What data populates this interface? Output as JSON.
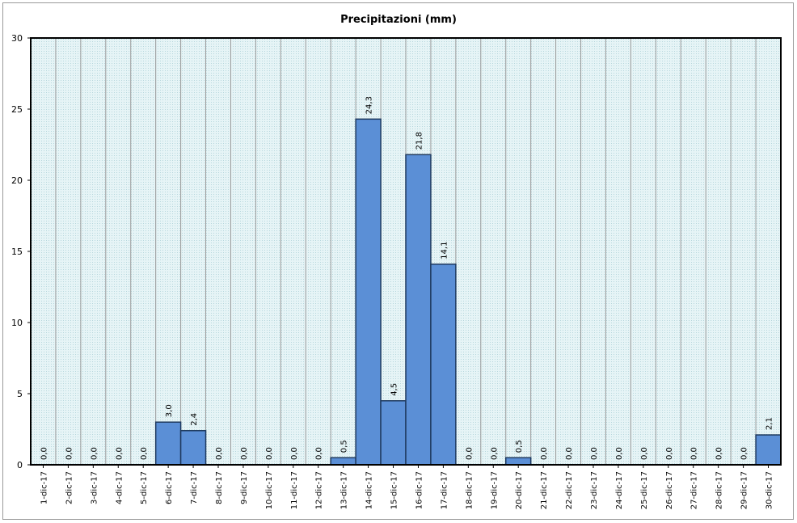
{
  "chart_data": {
    "type": "bar",
    "title": "Precipitazioni (mm)",
    "xlabel": "",
    "ylabel": "",
    "ylim": [
      0,
      30
    ],
    "yticks": [
      "0",
      "5",
      "10",
      "15",
      "20",
      "25",
      "30"
    ],
    "grid": true,
    "colors": {
      "bar_fill": "#5b8fd6",
      "bar_stroke": "#1f3a5f",
      "plot_background": "#d4ecef",
      "gridline": "#9a9a9a"
    },
    "categories": [
      "1-dic-17",
      "2-dic-17",
      "3-dic-17",
      "4-dic-17",
      "5-dic-17",
      "6-dic-17",
      "7-dic-17",
      "8-dic-17",
      "9-dic-17",
      "10-dic-17",
      "11-dic-17",
      "12-dic-17",
      "13-dic-17",
      "14-dic-17",
      "15-dic-17",
      "16-dic-17",
      "17-dic-17",
      "18-dic-17",
      "19-dic-17",
      "20-dic-17",
      "21-dic-17",
      "22-dic-17",
      "23-dic-17",
      "24-dic-17",
      "25-dic-17",
      "26-dic-17",
      "27-dic-17",
      "28-dic-17",
      "29-dic-17",
      "30-dic-17"
    ],
    "values": [
      0.0,
      0.0,
      0.0,
      0.0,
      0.0,
      3.0,
      2.4,
      0.0,
      0.0,
      0.0,
      0.0,
      0.0,
      0.5,
      24.3,
      4.5,
      21.8,
      14.1,
      0.0,
      0.0,
      0.5,
      0.0,
      0.0,
      0.0,
      0.0,
      0.0,
      0.0,
      0.0,
      0.0,
      0.0,
      2.1
    ],
    "data_labels": [
      "0,0",
      "0,0",
      "0,0",
      "0,0",
      "0,0",
      "3,0",
      "2,4",
      "0,0",
      "0,0",
      "0,0",
      "0,0",
      "0,0",
      "0,5",
      "24,3",
      "4,5",
      "21,8",
      "14,1",
      "0,0",
      "0,0",
      "0,5",
      "0,0",
      "0,0",
      "0,0",
      "0,0",
      "0,0",
      "0,0",
      "0,0",
      "0,0",
      "0,0",
      "2,1"
    ]
  }
}
